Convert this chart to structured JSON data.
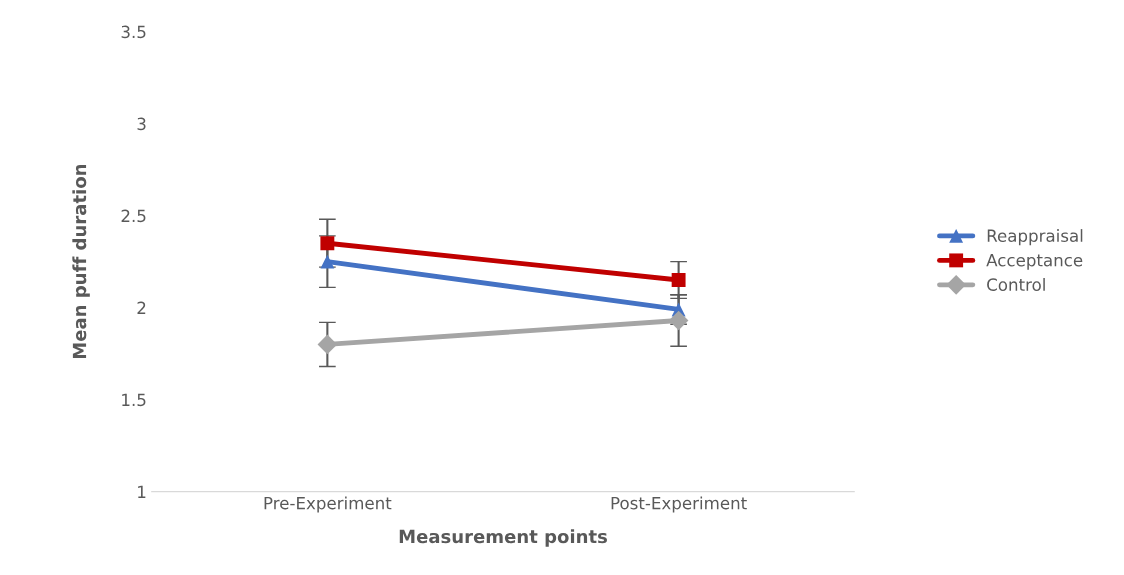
{
  "chart_data": {
    "type": "line",
    "xlabel": "Measurement points",
    "ylabel": "Mean puff duration",
    "categories": [
      "Pre-Experiment",
      "Post-Experiment"
    ],
    "series": [
      {
        "name": "Reappraisal",
        "color": "#4472c4",
        "marker": "triangle",
        "values": [
          2.25,
          1.99
        ],
        "errors": [
          0.14,
          0.08
        ]
      },
      {
        "name": "Acceptance",
        "color": "#c00000",
        "marker": "square",
        "values": [
          2.35,
          2.15
        ],
        "errors": [
          0.13,
          0.1
        ]
      },
      {
        "name": "Control",
        "color": "#a5a5a5",
        "marker": "diamond",
        "values": [
          1.8,
          1.93
        ],
        "errors": [
          0.12,
          0.14
        ]
      }
    ],
    "ylim": [
      1,
      3.5
    ],
    "yticks": [
      1,
      1.5,
      2,
      2.5,
      3,
      3.5
    ],
    "grid": false,
    "legend": "right"
  }
}
